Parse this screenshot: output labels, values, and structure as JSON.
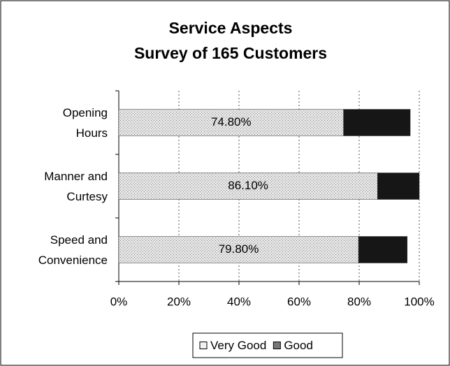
{
  "chart_data": {
    "type": "stacked_barh",
    "title": "Service Aspects",
    "subtitle": "Survey of 165 Customers",
    "categories": [
      "Opening Hours",
      "Manner and Curtesy",
      "Speed and Convenience"
    ],
    "series": [
      {
        "name": "Very Good",
        "color": "#cfcfcf",
        "values": [
          74.8,
          86.1,
          79.8
        ],
        "value_labels": [
          "74.80%",
          "86.10%",
          "79.80%"
        ]
      },
      {
        "name": "Good",
        "color": "#161616",
        "values": [
          22.2,
          13.9,
          16.2
        ]
      }
    ],
    "xlim": [
      0,
      100
    ],
    "xticks": [
      {
        "value": 0,
        "label": "0%"
      },
      {
        "value": 20,
        "label": "20%"
      },
      {
        "value": 40,
        "label": "40%"
      },
      {
        "value": 60,
        "label": "60%"
      },
      {
        "value": 80,
        "label": "80%"
      },
      {
        "value": 100,
        "label": "100%"
      }
    ],
    "grid": true,
    "legend": "bottom"
  }
}
